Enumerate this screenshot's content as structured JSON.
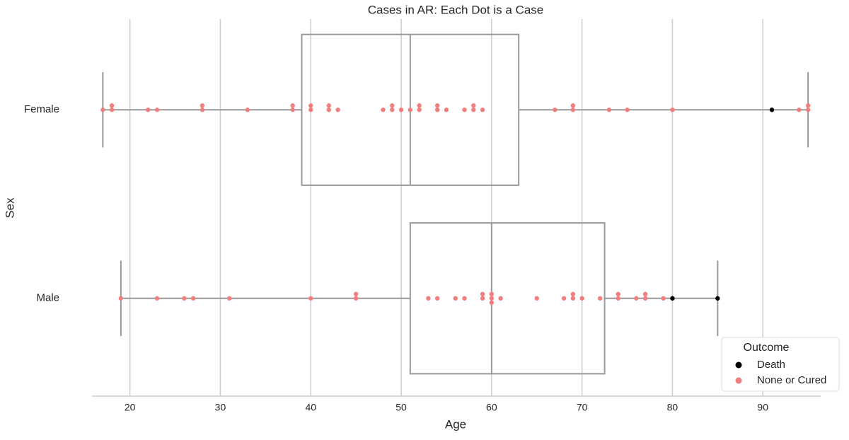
{
  "chart_data": {
    "type": "box-swarm",
    "title": "Cases in AR: Each Dot is a Case",
    "x_label": "Age",
    "y_label": "Sex",
    "orientation": "horizontal",
    "categories": [
      "Female",
      "Male"
    ],
    "xlim": [
      15.8,
      96.4
    ],
    "xticks": [
      20,
      30,
      40,
      50,
      60,
      70,
      80,
      90
    ],
    "grid": true,
    "box_color": "#999999",
    "boxes": [
      {
        "whislo": 17,
        "q1": 39,
        "med": 51,
        "q3": 63,
        "whishi": 95
      },
      {
        "whislo": 19,
        "q1": 51,
        "med": 60,
        "q3": 72.5,
        "whishi": 85
      }
    ],
    "legend_title": "Outcome",
    "legend_position": "lower right",
    "series": [
      {
        "name": "Death",
        "color": "#000000",
        "values_by_category": [
          [
            91
          ],
          [
            80,
            85
          ]
        ]
      },
      {
        "name": "None or Cured",
        "color": "#f08080",
        "values_by_category": [
          [
            17,
            18,
            18,
            22,
            23,
            28,
            28,
            33,
            38,
            38,
            40,
            40,
            42,
            42,
            43,
            48,
            49,
            49,
            50,
            51,
            52,
            52,
            54,
            54,
            55,
            57,
            58,
            58,
            59,
            67,
            69,
            69,
            73,
            75,
            80,
            94,
            95,
            95
          ],
          [
            19,
            23,
            26,
            27,
            31,
            40,
            45,
            45,
            53,
            54,
            56,
            57,
            59,
            59,
            60,
            60,
            60,
            61,
            65,
            68,
            69,
            69,
            70,
            72,
            74,
            74,
            76,
            77,
            77,
            79
          ]
        ]
      }
    ]
  }
}
